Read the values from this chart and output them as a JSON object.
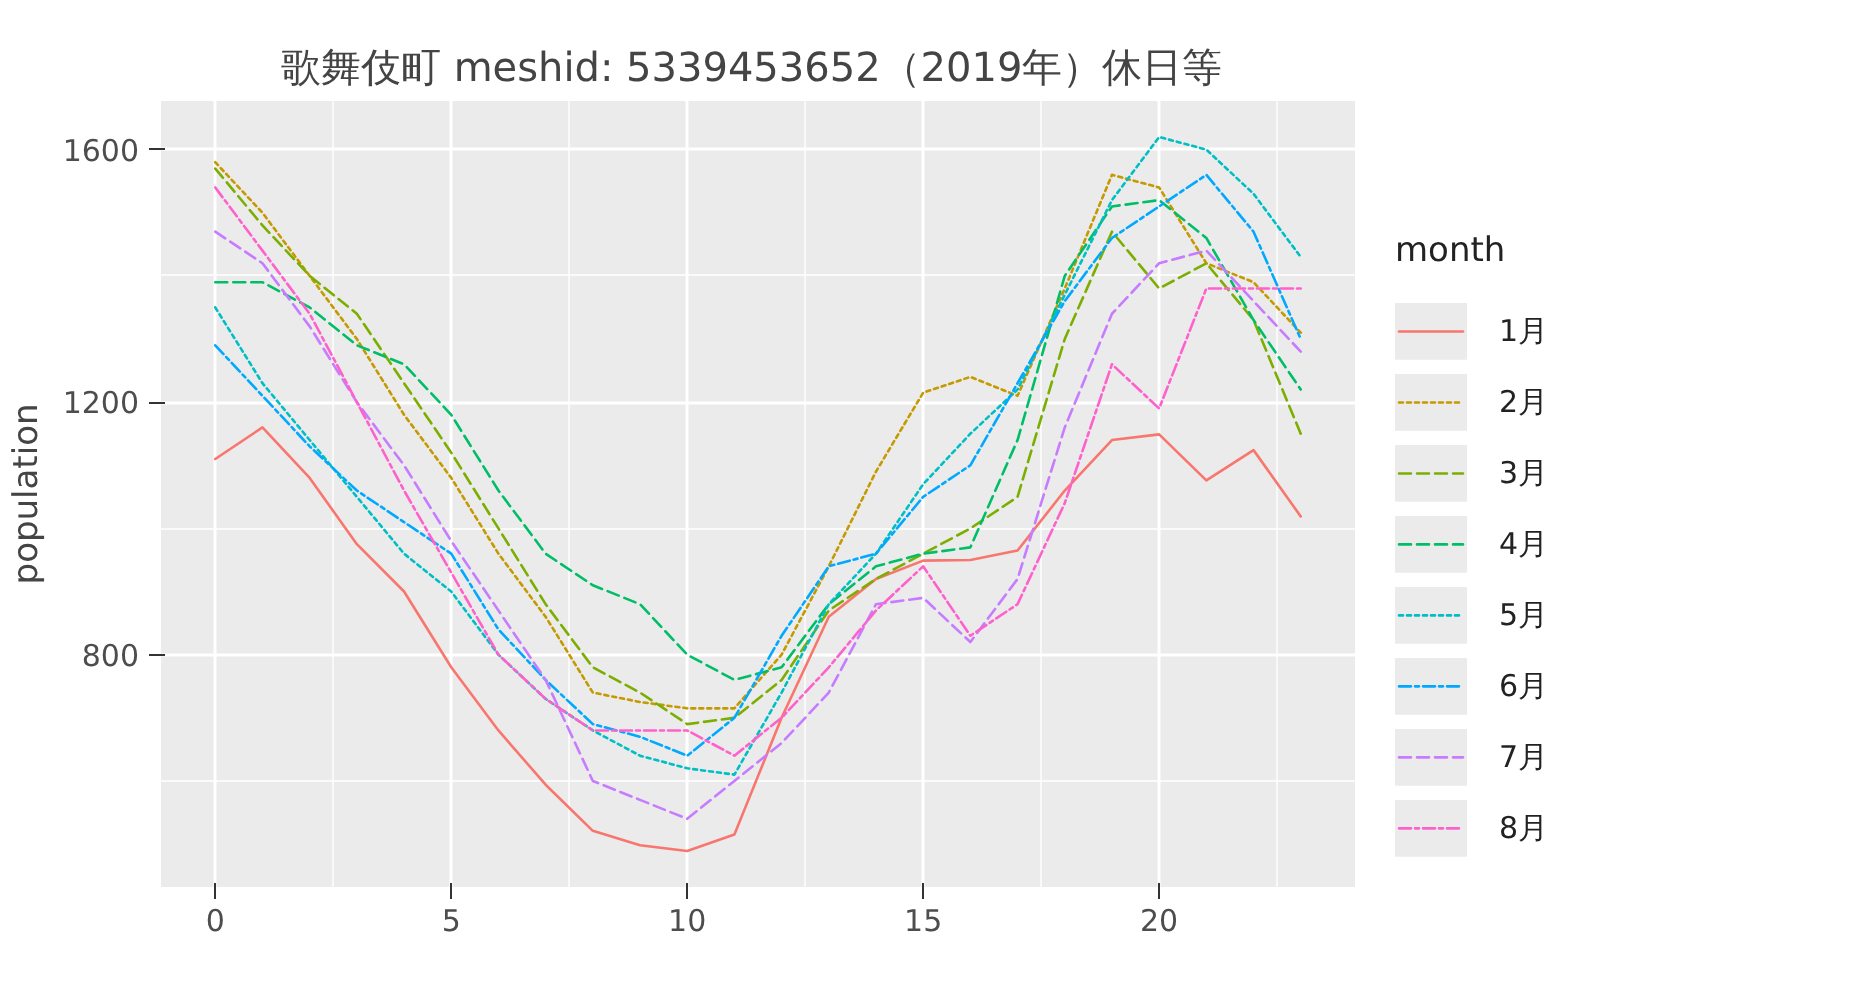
{
  "chart_data": {
    "type": "line",
    "title": "歌舞伎町  meshid: 5339453652（2019年）休日等",
    "ylabel": "population",
    "legend_title": "month",
    "x": [
      0,
      1,
      2,
      3,
      4,
      5,
      6,
      7,
      8,
      9,
      10,
      11,
      12,
      13,
      14,
      15,
      16,
      17,
      18,
      19,
      20,
      21,
      22,
      23
    ],
    "xlim": [
      -1.15,
      24.15
    ],
    "xticks": [
      0,
      5,
      10,
      15,
      20
    ],
    "ylim": [
      432,
      1677
    ],
    "yticks": [
      800,
      1200,
      1600
    ],
    "grid": true,
    "legend": "right",
    "series": [
      {
        "name": "1月",
        "color": "#f8766d",
        "line_style": "solid",
        "values": [
          1110,
          1160,
          1080,
          975,
          900,
          780,
          680,
          594,
          521,
          498,
          489,
          515,
          700,
          860,
          920,
          949,
          950,
          965,
          1060,
          1140,
          1149,
          1076,
          1124,
          1019
        ]
      },
      {
        "name": "2月",
        "color": "#c49a00",
        "line_style": "dotted",
        "values": [
          1580,
          1500,
          1400,
          1300,
          1180,
          1080,
          960,
          860,
          740,
          725,
          715,
          715,
          800,
          940,
          1090,
          1215,
          1240,
          1210,
          1380,
          1560,
          1540,
          1420,
          1390,
          1310
        ]
      },
      {
        "name": "3月",
        "color": "#7cae00",
        "line_style": "dashed",
        "values": [
          1570,
          1480,
          1400,
          1340,
          1230,
          1120,
          1000,
          880,
          780,
          740,
          690,
          700,
          760,
          870,
          920,
          960,
          1000,
          1050,
          1300,
          1470,
          1380,
          1420,
          1330,
          1150
        ]
      },
      {
        "name": "4月",
        "color": "#00be67",
        "line_style": "dashed",
        "values": [
          1390,
          1390,
          1350,
          1290,
          1260,
          1180,
          1060,
          960,
          910,
          880,
          800,
          760,
          780,
          880,
          940,
          960,
          970,
          1140,
          1400,
          1510,
          1520,
          1460,
          1330,
          1220
        ]
      },
      {
        "name": "5月",
        "color": "#00bfc4",
        "line_style": "dotted",
        "values": [
          1350,
          1230,
          1140,
          1050,
          960,
          900,
          800,
          730,
          680,
          640,
          620,
          610,
          740,
          880,
          960,
          1070,
          1150,
          1220,
          1370,
          1520,
          1620,
          1600,
          1530,
          1430
        ]
      },
      {
        "name": "6月",
        "color": "#00a9ff",
        "line_style": "dashdot",
        "values": [
          1290,
          1210,
          1130,
          1060,
          1010,
          960,
          840,
          760,
          690,
          670,
          640,
          700,
          830,
          940,
          960,
          1050,
          1100,
          1230,
          1360,
          1460,
          1510,
          1560,
          1470,
          1300
        ]
      },
      {
        "name": "7月",
        "color": "#c77cff",
        "line_style": "dashed",
        "values": [
          1470,
          1420,
          1320,
          1200,
          1100,
          980,
          870,
          760,
          600,
          570,
          540,
          600,
          660,
          740,
          880,
          890,
          820,
          920,
          1160,
          1340,
          1420,
          1440,
          1360,
          1280
        ]
      },
      {
        "name": "8月",
        "color": "#ff61cc",
        "line_style": "dashdot",
        "values": [
          1540,
          1440,
          1340,
          1200,
          1060,
          930,
          800,
          730,
          680,
          680,
          680,
          640,
          700,
          780,
          870,
          940,
          830,
          880,
          1040,
          1260,
          1190,
          1380,
          1380,
          1380
        ]
      }
    ]
  }
}
